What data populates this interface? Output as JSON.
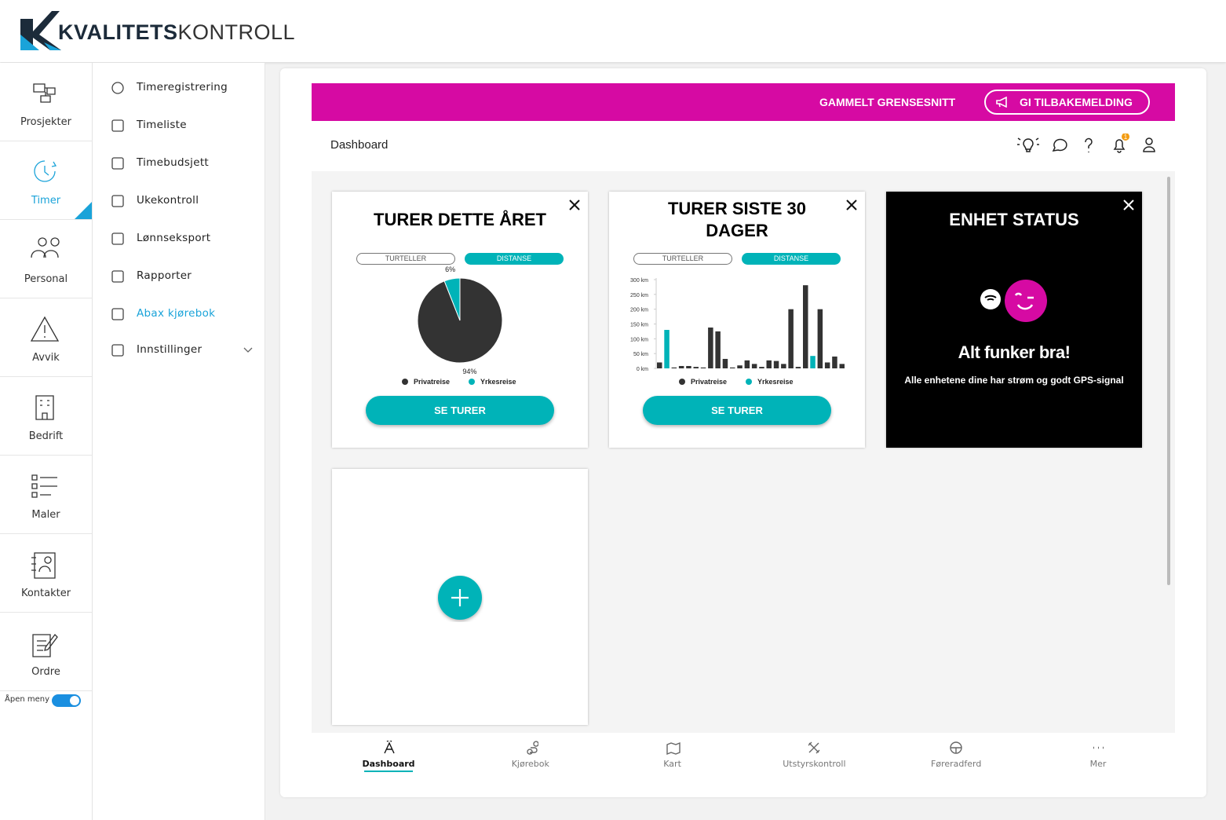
{
  "header": {
    "logo_bold": "KVALITETS",
    "logo_light": "KONTROLL"
  },
  "sidebar": {
    "items": [
      "Prosjekter",
      "Timer",
      "Personal",
      "Avvik",
      "Bedrift",
      "Maler",
      "Kontakter",
      "Ordre"
    ],
    "toggle_label": "Åpen meny"
  },
  "submenu": {
    "items": [
      "Timeregistrering",
      "Timeliste",
      "Timebudsjett",
      "Ukekontroll",
      "Lønnseksport",
      "Rapporter",
      "Abax kjørebok",
      "Innstillinger"
    ]
  },
  "banner": {
    "link": "GAMMELT GRENSESNITT",
    "button": "GI TILBAKEMELDING"
  },
  "toolbar": {
    "title": "Dashboard",
    "notifications": 1
  },
  "chart_data": [
    {
      "type": "pie",
      "title": "TURER DETTE ÅRET",
      "toggles": [
        "TURTELLER",
        "DISTANSE"
      ],
      "button": "SE TURER",
      "categories": [
        "Privatreise",
        "Yrkesreise"
      ],
      "values": [
        94,
        6
      ],
      "value_labels": [
        "94%",
        "6%"
      ],
      "colors": [
        "#333333",
        "#00b3b8"
      ]
    },
    {
      "type": "bar",
      "title": "TURER SISTE 30 DAGER",
      "toggles": [
        "TURTELLER",
        "DISTANSE"
      ],
      "button": "SE TURER",
      "ylim": [
        0,
        300
      ],
      "yticks": [
        {
          "value": 0,
          "label": "0 km"
        },
        {
          "value": 50,
          "label": "50 km"
        },
        {
          "value": 100,
          "label": "100 km"
        },
        {
          "value": 150,
          "label": "150 km"
        },
        {
          "value": 200,
          "label": "200 km"
        },
        {
          "value": 250,
          "label": "250 km"
        },
        {
          "value": 300,
          "label": "300 km"
        }
      ],
      "series": [
        {
          "name": "Privatreise",
          "color": "#333333",
          "values": [
            20,
            null,
            3,
            8,
            8,
            5,
            3,
            138,
            125,
            32,
            3,
            10,
            27,
            15,
            5,
            27,
            25,
            15,
            200,
            5,
            281,
            null,
            200,
            20,
            40,
            15
          ]
        },
        {
          "name": "Yrkesreise",
          "color": "#00b3b8",
          "values": [
            null,
            130,
            null,
            null,
            null,
            null,
            null,
            null,
            null,
            null,
            null,
            null,
            null,
            null,
            null,
            null,
            null,
            null,
            null,
            null,
            null,
            42,
            null,
            null,
            null,
            null
          ]
        }
      ]
    }
  ],
  "status_card": {
    "title": "ENHET STATUS",
    "heading": "Alt funker bra!",
    "text": "Alle enhetene dine har strøm og godt GPS-signal"
  },
  "bottom_nav": {
    "items": [
      "Dashboard",
      "Kjørebok",
      "Kart",
      "Utstyrskontroll",
      "Føreradferd",
      "Mer"
    ]
  }
}
